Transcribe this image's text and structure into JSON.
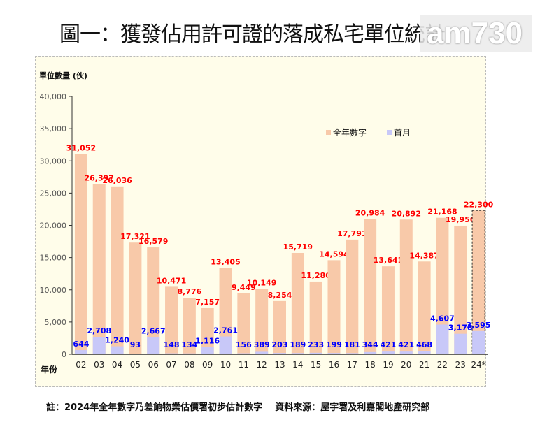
{
  "title": "圖一：獲發佔用許可證的落成私宅單位統計",
  "logo": "am730",
  "note": "註：2024年全年數字乃差餉物業估價署初步估計數字",
  "source": "資料來源：屋宇署及利嘉閣地產研究部",
  "chart_data": {
    "type": "bar",
    "ylabel": "單位數量 (伙)",
    "xlabel": "年份",
    "ylim": [
      0,
      40000
    ],
    "yticks": [
      "0",
      "5,000",
      "10,000",
      "15,000",
      "20,000",
      "25,000",
      "30,000",
      "35,000",
      "40,000"
    ],
    "categories": [
      "02",
      "03",
      "04",
      "05",
      "06",
      "07",
      "08",
      "09",
      "10",
      "11",
      "12",
      "13",
      "14",
      "15",
      "16",
      "17",
      "18",
      "19",
      "20",
      "21",
      "22",
      "23",
      "24*"
    ],
    "legend_position": "top-right",
    "series": [
      {
        "name": "全年數字",
        "color": "#f8c9a9",
        "label_color": "#ff0000",
        "values": [
          31052,
          26397,
          26036,
          17321,
          16579,
          10471,
          8776,
          7157,
          13405,
          9449,
          10149,
          8254,
          15719,
          11280,
          14594,
          17791,
          20984,
          13641,
          20892,
          14387,
          21168,
          19950,
          22300
        ]
      },
      {
        "name": "首月",
        "color": "#c8c8f8",
        "label_color": "#0000ff",
        "values": [
          644,
          2708,
          1240,
          93,
          2667,
          148,
          134,
          1116,
          2761,
          156,
          389,
          203,
          189,
          233,
          199,
          181,
          344,
          421,
          421,
          468,
          4607,
          3178,
          3595
        ]
      }
    ]
  }
}
